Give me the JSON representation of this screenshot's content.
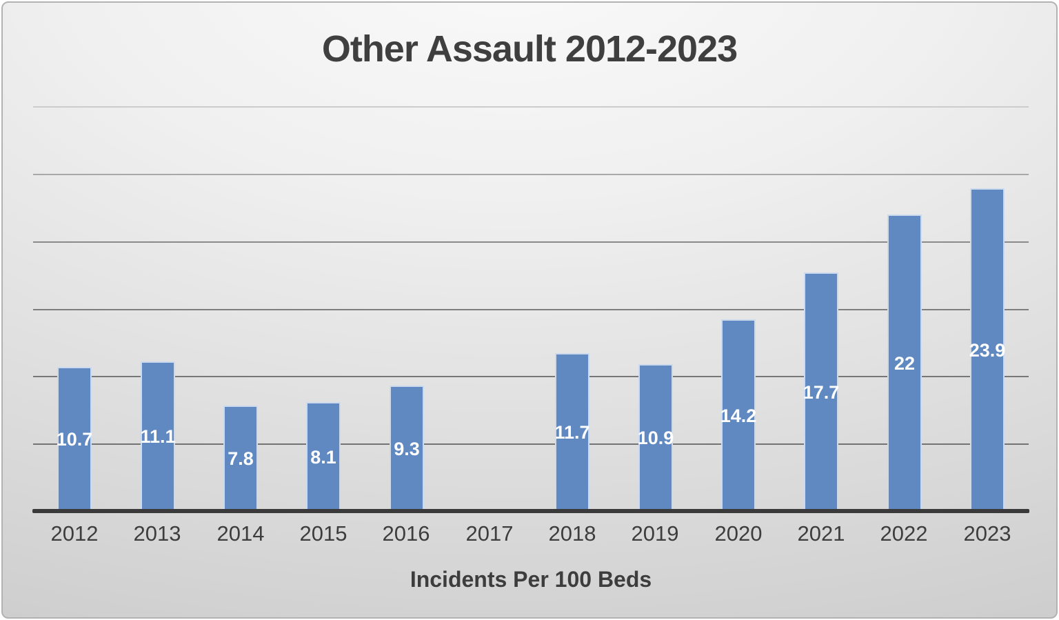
{
  "title": "Other Assault 2012-2023",
  "axis_title": "Incidents Per 100 Beds",
  "colors": {
    "bar_fill": "#6089c2",
    "bar_border": "#cdd9ec",
    "axis_line": "#3a3a3a",
    "title_text": "#3f3f3f",
    "tick_text": "#3d3d3d",
    "data_label_text": "#ffffff",
    "gridline_colors_top_to_bottom": [
      "#cccccc",
      "#a8a8a8",
      "#8a8a8a",
      "#7e7e7e",
      "#777777",
      "#737373"
    ]
  },
  "chart_data": {
    "type": "bar",
    "title": "Other Assault 2012-2023",
    "xlabel": "Incidents Per 100 Beds",
    "ylabel": "",
    "categories": [
      "2012",
      "2013",
      "2014",
      "2015",
      "2016",
      "2017",
      "2018",
      "2019",
      "2020",
      "2021",
      "2022",
      "2023"
    ],
    "values": [
      10.7,
      11.1,
      7.8,
      8.1,
      9.3,
      null,
      11.7,
      10.9,
      14.2,
      17.7,
      22,
      23.9
    ],
    "data_labels": [
      "10.7",
      "11.1",
      "7.8",
      "8.1",
      "9.3",
      "",
      "11.7",
      "10.9",
      "14.2",
      "17.7",
      "22",
      "23.9"
    ],
    "ylim": [
      0,
      30
    ],
    "gridline_values": [
      5,
      10,
      15,
      20,
      25,
      30
    ],
    "y_tick_labels_shown": false,
    "grid": true,
    "legend": false
  }
}
